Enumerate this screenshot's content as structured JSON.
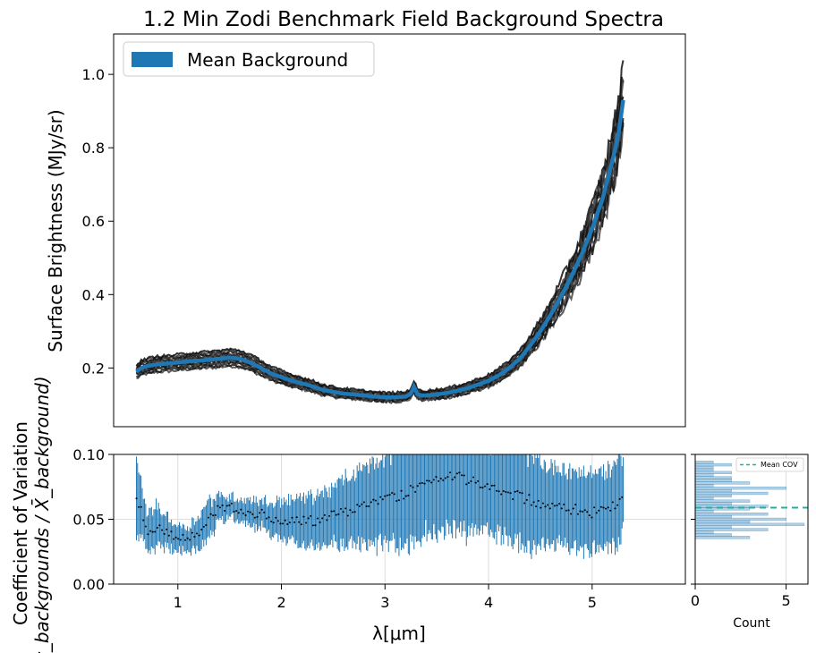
{
  "figure": {
    "title": "1.2 Min Zodi Benchmark Field Background Spectra"
  },
  "chart_data": [
    {
      "name": "background-spectra",
      "type": "line",
      "title": "1.2 Min Zodi Benchmark Field Background Spectra",
      "ylabel": "Surface Brightness (MJy/sr)",
      "xlabel": "",
      "xlim": [
        0.38,
        5.9
      ],
      "ylim": [
        0.04,
        1.11
      ],
      "yticks": [
        0.2,
        0.4,
        0.6,
        0.8,
        1.0
      ],
      "ytick_labels": [
        "0.2",
        "0.4",
        "0.6",
        "0.8",
        "1.0"
      ],
      "legend": {
        "position": "top-left",
        "entries": [
          "Mean Background"
        ]
      },
      "series": [
        {
          "name": "Mean Background",
          "color": "#1f77b4",
          "x": [
            0.6,
            0.65,
            0.7,
            0.8,
            0.9,
            1.0,
            1.1,
            1.2,
            1.3,
            1.4,
            1.5,
            1.6,
            1.7,
            1.8,
            1.9,
            2.0,
            2.1,
            2.2,
            2.3,
            2.4,
            2.5,
            2.6,
            2.7,
            2.8,
            2.9,
            3.0,
            3.1,
            3.2,
            3.25,
            3.28,
            3.31,
            3.35,
            3.4,
            3.5,
            3.6,
            3.7,
            3.8,
            3.9,
            4.0,
            4.1,
            4.2,
            4.3,
            4.4,
            4.5,
            4.6,
            4.7,
            4.8,
            4.9,
            5.0,
            5.1,
            5.2,
            5.25,
            5.3
          ],
          "values": [
            0.19,
            0.2,
            0.205,
            0.21,
            0.212,
            0.215,
            0.218,
            0.22,
            0.222,
            0.225,
            0.228,
            0.225,
            0.215,
            0.2,
            0.185,
            0.175,
            0.165,
            0.158,
            0.15,
            0.14,
            0.135,
            0.13,
            0.128,
            0.125,
            0.122,
            0.12,
            0.12,
            0.122,
            0.13,
            0.15,
            0.13,
            0.125,
            0.125,
            0.128,
            0.132,
            0.138,
            0.145,
            0.155,
            0.165,
            0.18,
            0.2,
            0.225,
            0.26,
            0.3,
            0.345,
            0.395,
            0.45,
            0.51,
            0.58,
            0.66,
            0.77,
            0.83,
            0.93
          ]
        }
      ],
      "individual_spectra_color": "#222222",
      "individual_spectra_count": 14
    },
    {
      "name": "coefficient-of-variation",
      "type": "scatter",
      "ylabel_line1": "Coefficient of Variation",
      "ylabel_line2": "(σ_backgrounds / X̄_background)",
      "xlabel": "λ[μm]",
      "xlim": [
        0.38,
        5.9
      ],
      "ylim": [
        0.0,
        0.1
      ],
      "xticks": [
        1,
        2,
        3,
        4,
        5
      ],
      "xtick_labels": [
        "1",
        "2",
        "3",
        "4",
        "5"
      ],
      "yticks": [
        0.0,
        0.05,
        0.1
      ],
      "ytick_labels": [
        "0.00",
        "0.05",
        "0.10"
      ],
      "grid": true,
      "errorbar_color": "#1f77b4",
      "point_color": "#000000",
      "cov_profile": {
        "x": [
          0.6,
          0.7,
          0.8,
          0.9,
          1.0,
          1.1,
          1.2,
          1.3,
          1.4,
          1.5,
          1.6,
          1.7,
          1.8,
          1.9,
          2.0,
          2.2,
          2.4,
          2.6,
          2.8,
          3.0,
          3.2,
          3.4,
          3.6,
          3.8,
          4.0,
          4.2,
          4.4,
          4.6,
          4.8,
          5.0,
          5.2,
          5.3
        ],
        "values": [
          0.07,
          0.04,
          0.045,
          0.04,
          0.035,
          0.035,
          0.04,
          0.05,
          0.058,
          0.06,
          0.058,
          0.055,
          0.055,
          0.05,
          0.05,
          0.048,
          0.05,
          0.055,
          0.06,
          0.065,
          0.07,
          0.08,
          0.085,
          0.08,
          0.075,
          0.07,
          0.065,
          0.06,
          0.058,
          0.055,
          0.06,
          0.07
        ],
        "errors": [
          0.03,
          0.015,
          0.015,
          0.012,
          0.01,
          0.01,
          0.012,
          0.015,
          0.01,
          0.008,
          0.008,
          0.01,
          0.01,
          0.012,
          0.015,
          0.018,
          0.02,
          0.025,
          0.03,
          0.035,
          0.04,
          0.04,
          0.04,
          0.04,
          0.035,
          0.035,
          0.035,
          0.03,
          0.03,
          0.03,
          0.03,
          0.03
        ]
      }
    },
    {
      "name": "cov-histogram",
      "type": "bar",
      "orientation": "horizontal",
      "xlabel": "Count",
      "xlim": [
        0,
        6.2
      ],
      "xticks": [
        0,
        5
      ],
      "xtick_labels": [
        "0",
        "5"
      ],
      "ylim": [
        0.0,
        0.1
      ],
      "bar_color": "#1f77b4",
      "mean_line": {
        "label": "Mean COV",
        "value": 0.059,
        "color": "#17b79e"
      },
      "legend": {
        "position": "top-right",
        "entries": [
          "Mean COV"
        ]
      },
      "bins": [
        0.035,
        0.037,
        0.039,
        0.041,
        0.043,
        0.045,
        0.047,
        0.049,
        0.051,
        0.053,
        0.055,
        0.057,
        0.059,
        0.061,
        0.063,
        0.065,
        0.067,
        0.069,
        0.071,
        0.073,
        0.075,
        0.077,
        0.079,
        0.081,
        0.083,
        0.085,
        0.087,
        0.089,
        0.091,
        0.093
      ],
      "counts": [
        3,
        2,
        1,
        4,
        2,
        6,
        3,
        5,
        2,
        4,
        1,
        3,
        4,
        2,
        3,
        1,
        2,
        4,
        2,
        5,
        1,
        3,
        2,
        2,
        1,
        2,
        1,
        1,
        2,
        1
      ]
    }
  ]
}
